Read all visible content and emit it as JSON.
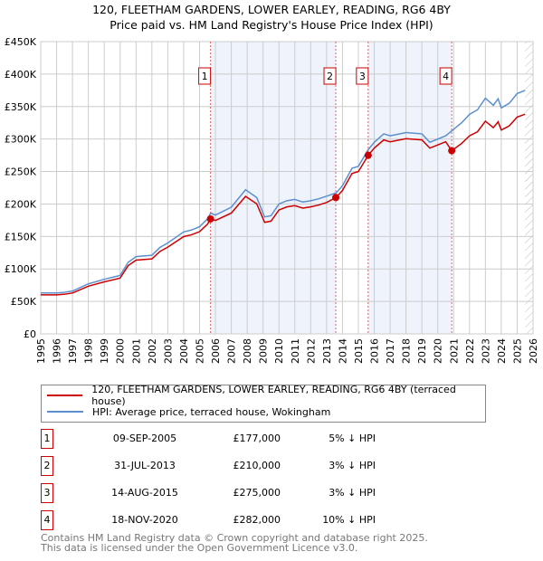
{
  "chart_data": {
    "type": "line",
    "title": "120, FLEETHAM GARDENS, LOWER EARLEY, READING, RG6 4BY",
    "subtitle": "Price paid vs. HM Land Registry's House Price Index (HPI)",
    "xlim": [
      1995,
      2026
    ],
    "ylim": [
      0,
      450000
    ],
    "y_ticks": [
      0,
      50000,
      100000,
      150000,
      200000,
      250000,
      300000,
      350000,
      400000,
      450000
    ],
    "y_tick_labels": [
      "£0",
      "£50K",
      "£100K",
      "£150K",
      "£200K",
      "£250K",
      "£300K",
      "£350K",
      "£400K",
      "£450K"
    ],
    "x_ticks": [
      "1995",
      "1996",
      "1997",
      "1998",
      "1999",
      "2000",
      "2001",
      "2002",
      "2003",
      "2004",
      "2005",
      "2006",
      "2007",
      "2008",
      "2009",
      "2010",
      "2011",
      "2012",
      "2013",
      "2014",
      "2015",
      "2016",
      "2017",
      "2018",
      "2019",
      "2020",
      "2021",
      "2022",
      "2023",
      "2024",
      "2025",
      "2026"
    ],
    "grid": true,
    "series": [
      {
        "name": "120, FLEETHAM GARDENS, LOWER EARLEY, READING, RG6 4BY (terraced house)",
        "color": "#cc0000",
        "derived_from": "HPI scaled to sale prices"
      },
      {
        "name": "HPI: Average price, terraced house, Wokingham",
        "color": "#5b8fd0",
        "x": [
          1995,
          1996,
          1996.5,
          1997,
          1998,
          1999,
          2000,
          2000.5,
          2001,
          2002,
          2002.5,
          2003,
          2004,
          2004.5,
          2005,
          2005.5,
          2005.7,
          2006,
          2007,
          2007.9,
          2008.3,
          2008.6,
          2009.1,
          2009.5,
          2010,
          2010.5,
          2011,
          2011.5,
          2012,
          2012.5,
          2013,
          2013.6,
          2014,
          2014.6,
          2015,
          2015.6,
          2016,
          2016.6,
          2017,
          2018,
          2019,
          2019.5,
          2020,
          2020.5,
          2020.9,
          2021.5,
          2022,
          2022.5,
          2023,
          2023.5,
          2023.8,
          2024,
          2024.5,
          2025,
          2025.5
        ],
        "y": [
          63000,
          63000,
          64000,
          66000,
          77000,
          84000,
          90000,
          110000,
          119000,
          121000,
          133000,
          140000,
          157000,
          160000,
          165000,
          177000,
          186000,
          183000,
          195000,
          222000,
          215000,
          210000,
          180000,
          182000,
          200000,
          205000,
          207000,
          203000,
          205000,
          208000,
          212000,
          217000,
          228000,
          255000,
          258000,
          283000,
          295000,
          308000,
          305000,
          310000,
          308000,
          295000,
          300000,
          305000,
          313000,
          325000,
          338000,
          345000,
          363000,
          352000,
          362000,
          348000,
          355000,
          370000,
          375000
        ]
      }
    ],
    "sales": [
      {
        "label": "1",
        "x": 2005.69,
        "date": "09-SEP-2005",
        "price_value": 177000,
        "price": "£177,000",
        "hpi": "5% ↓ HPI"
      },
      {
        "label": "2",
        "x": 2013.58,
        "date": "31-JUL-2013",
        "price_value": 210000,
        "price": "£210,000",
        "hpi": "3% ↓ HPI"
      },
      {
        "label": "3",
        "x": 2015.62,
        "date": "14-AUG-2015",
        "price_value": 275000,
        "price": "£275,000",
        "hpi": "3% ↓ HPI"
      },
      {
        "label": "4",
        "x": 2020.88,
        "date": "18-NOV-2020",
        "price_value": 282000,
        "price": "£282,000",
        "hpi": "10% ↓ HPI"
      }
    ],
    "shaded_ranges": [
      [
        2005.69,
        2013.58
      ],
      [
        2015.62,
        2020.88
      ]
    ],
    "forecast_from": 2025.5
  },
  "legend": {
    "property": "120, FLEETHAM GARDENS, LOWER EARLEY, READING, RG6 4BY (terraced house)",
    "hpi": "HPI: Average price, terraced house, Wokingham"
  },
  "footer": {
    "line1": "Contains HM Land Registry data © Crown copyright and database right 2025.",
    "line2": "This data is licensed under the Open Government Licence v3.0."
  }
}
